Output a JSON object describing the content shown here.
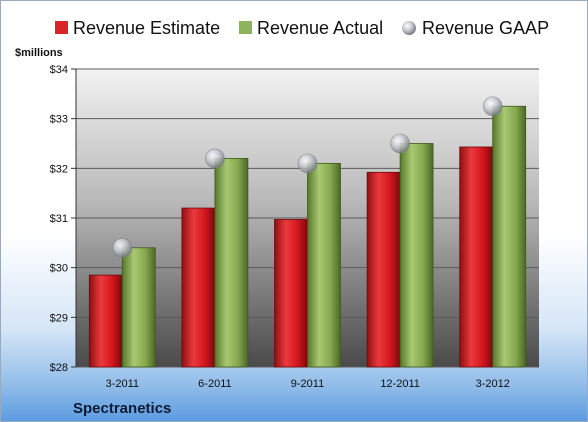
{
  "company": "Spectranetics",
  "colors": {
    "estimate": "#d9252a",
    "actual": "#8fb35a",
    "gaap": "#c0c4cc"
  },
  "chart_data": {
    "type": "bar",
    "title": "",
    "xlabel": "",
    "ylabel": "$millions",
    "categories": [
      "3-2011",
      "6-2011",
      "9-2011",
      "12-2011",
      "3-2012"
    ],
    "series": [
      {
        "name": "Revenue Estimate",
        "kind": "bar",
        "values": [
          29.85,
          31.2,
          30.97,
          31.92,
          32.43
        ]
      },
      {
        "name": "Revenue Actual",
        "kind": "bar",
        "values": [
          30.4,
          32.2,
          32.1,
          32.5,
          33.25
        ]
      },
      {
        "name": "Revenue GAAP",
        "kind": "marker",
        "values": [
          30.4,
          32.2,
          32.1,
          32.5,
          33.25
        ]
      }
    ],
    "ylim": [
      28,
      34
    ],
    "yticks": [
      28,
      29,
      30,
      31,
      32,
      33,
      34
    ],
    "ytick_labels": [
      "$28",
      "$29",
      "$30",
      "$31",
      "$32",
      "$33",
      "$34"
    ],
    "grid": true,
    "legend": "top"
  }
}
